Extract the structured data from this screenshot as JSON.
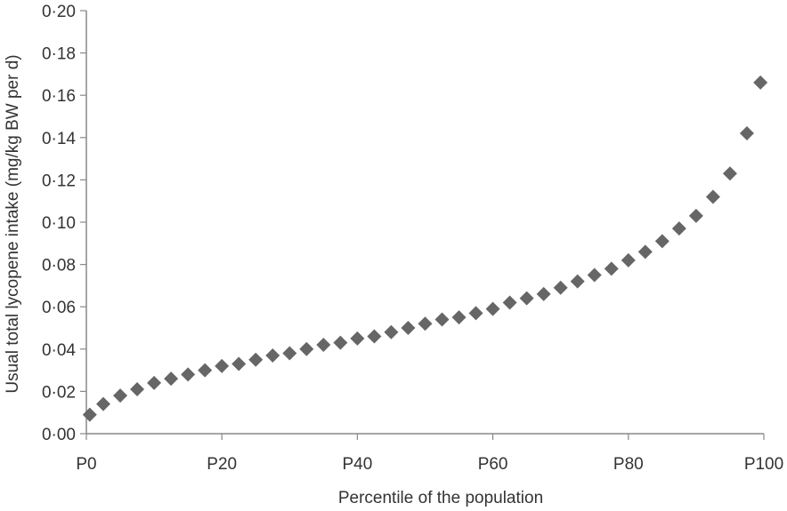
{
  "chart_data": {
    "type": "scatter",
    "xlabel": "Percentile of the population",
    "ylabel": "Usual total lycopene intake (mg/kg BW per d)",
    "xlim": [
      0,
      100
    ],
    "ylim": [
      0,
      0.2
    ],
    "x_ticks": [
      {
        "value": 0,
        "label": "P0"
      },
      {
        "value": 20,
        "label": "P20"
      },
      {
        "value": 40,
        "label": "P40"
      },
      {
        "value": 60,
        "label": "P60"
      },
      {
        "value": 80,
        "label": "P80"
      },
      {
        "value": 100,
        "label": "P100"
      }
    ],
    "y_ticks": [
      {
        "value": 0.0,
        "label": "0·00"
      },
      {
        "value": 0.02,
        "label": "0·02"
      },
      {
        "value": 0.04,
        "label": "0·04"
      },
      {
        "value": 0.06,
        "label": "0·06"
      },
      {
        "value": 0.08,
        "label": "0·08"
      },
      {
        "value": 0.1,
        "label": "0·10"
      },
      {
        "value": 0.12,
        "label": "0·12"
      },
      {
        "value": 0.14,
        "label": "0·14"
      },
      {
        "value": 0.16,
        "label": "0·16"
      },
      {
        "value": 0.18,
        "label": "0·18"
      },
      {
        "value": 0.2,
        "label": "0·20"
      }
    ],
    "grid": false,
    "marker": "diamond",
    "marker_color": "#666666",
    "axis_color": "#888888",
    "series": [
      {
        "x": [
          0.5,
          2.5,
          5,
          7.5,
          10,
          12.5,
          15,
          17.5,
          20,
          22.5,
          25,
          27.5,
          30,
          32.5,
          35,
          37.5,
          40,
          42.5,
          45,
          47.5,
          50,
          52.5,
          55,
          57.5,
          60,
          62.5,
          65,
          67.5,
          70,
          72.5,
          75,
          77.5,
          80,
          82.5,
          85,
          87.5,
          90,
          92.5,
          95,
          97.5,
          99.5
        ],
        "y": [
          0.009,
          0.014,
          0.018,
          0.021,
          0.024,
          0.026,
          0.028,
          0.03,
          0.032,
          0.033,
          0.035,
          0.037,
          0.038,
          0.04,
          0.042,
          0.043,
          0.045,
          0.046,
          0.048,
          0.05,
          0.052,
          0.054,
          0.055,
          0.057,
          0.059,
          0.062,
          0.064,
          0.066,
          0.069,
          0.072,
          0.075,
          0.078,
          0.082,
          0.086,
          0.091,
          0.097,
          0.103,
          0.112,
          0.123,
          0.142,
          0.166
        ]
      }
    ]
  }
}
